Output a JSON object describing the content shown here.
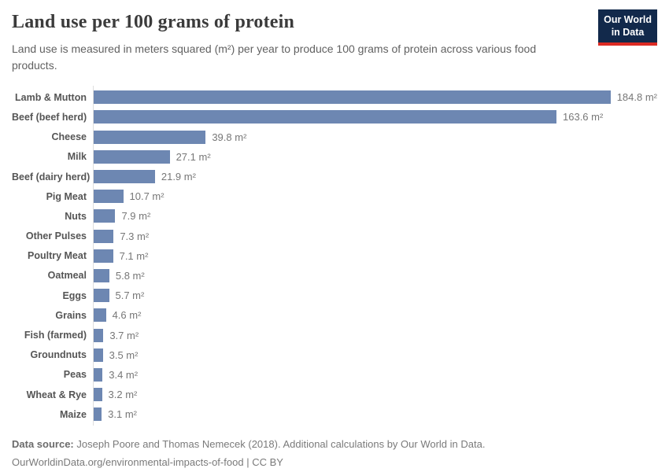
{
  "header": {
    "title": "Land use per 100 grams of protein",
    "subtitle": "Land use is measured in meters squared (m²) per year to produce 100 grams of protein across various food products.",
    "logo": {
      "line1": "Our World",
      "line2": "in Data"
    }
  },
  "chart_data": {
    "type": "bar",
    "orientation": "horizontal",
    "title": "Land use per 100 grams of protein",
    "xlabel": "",
    "ylabel": "",
    "unit": "m²",
    "xlim": [
      0,
      184.8
    ],
    "grid": false,
    "legend": false,
    "categories": [
      "Lamb & Mutton",
      "Beef (beef herd)",
      "Cheese",
      "Milk",
      "Beef (dairy herd)",
      "Pig Meat",
      "Nuts",
      "Other Pulses",
      "Poultry Meat",
      "Oatmeal",
      "Eggs",
      "Grains",
      "Fish (farmed)",
      "Groundnuts",
      "Peas",
      "Wheat & Rye",
      "Maize"
    ],
    "values": [
      184.8,
      163.6,
      39.8,
      27.1,
      21.9,
      10.7,
      7.9,
      7.3,
      7.1,
      5.8,
      5.7,
      4.6,
      3.7,
      3.5,
      3.4,
      3.2,
      3.1
    ],
    "value_labels": [
      "184.8 m²",
      "163.6 m²",
      "39.8 m²",
      "27.1 m²",
      "21.9 m²",
      "10.7 m²",
      "7.9 m²",
      "7.3 m²",
      "7.1 m²",
      "5.8 m²",
      "5.7 m²",
      "4.6 m²",
      "3.7 m²",
      "3.5 m²",
      "3.4 m²",
      "3.2 m²",
      "3.1 m²"
    ]
  },
  "footer": {
    "datasource_label": "Data source:",
    "datasource_text": "Joseph Poore and Thomas Nemecek (2018). Additional calculations by Our World in Data.",
    "link": "OurWorldinData.org/environmental-impacts-of-food",
    "separator": "|",
    "license": "CC BY"
  },
  "colors": {
    "bar": "#6d87b2",
    "axis_line": "#dedede",
    "title_text": "#3b3b3b",
    "subtitle_text": "#616161",
    "label_text": "#555555",
    "value_text": "#777777",
    "logo_bg": "#12294b",
    "logo_accent": "#dc2a23"
  }
}
